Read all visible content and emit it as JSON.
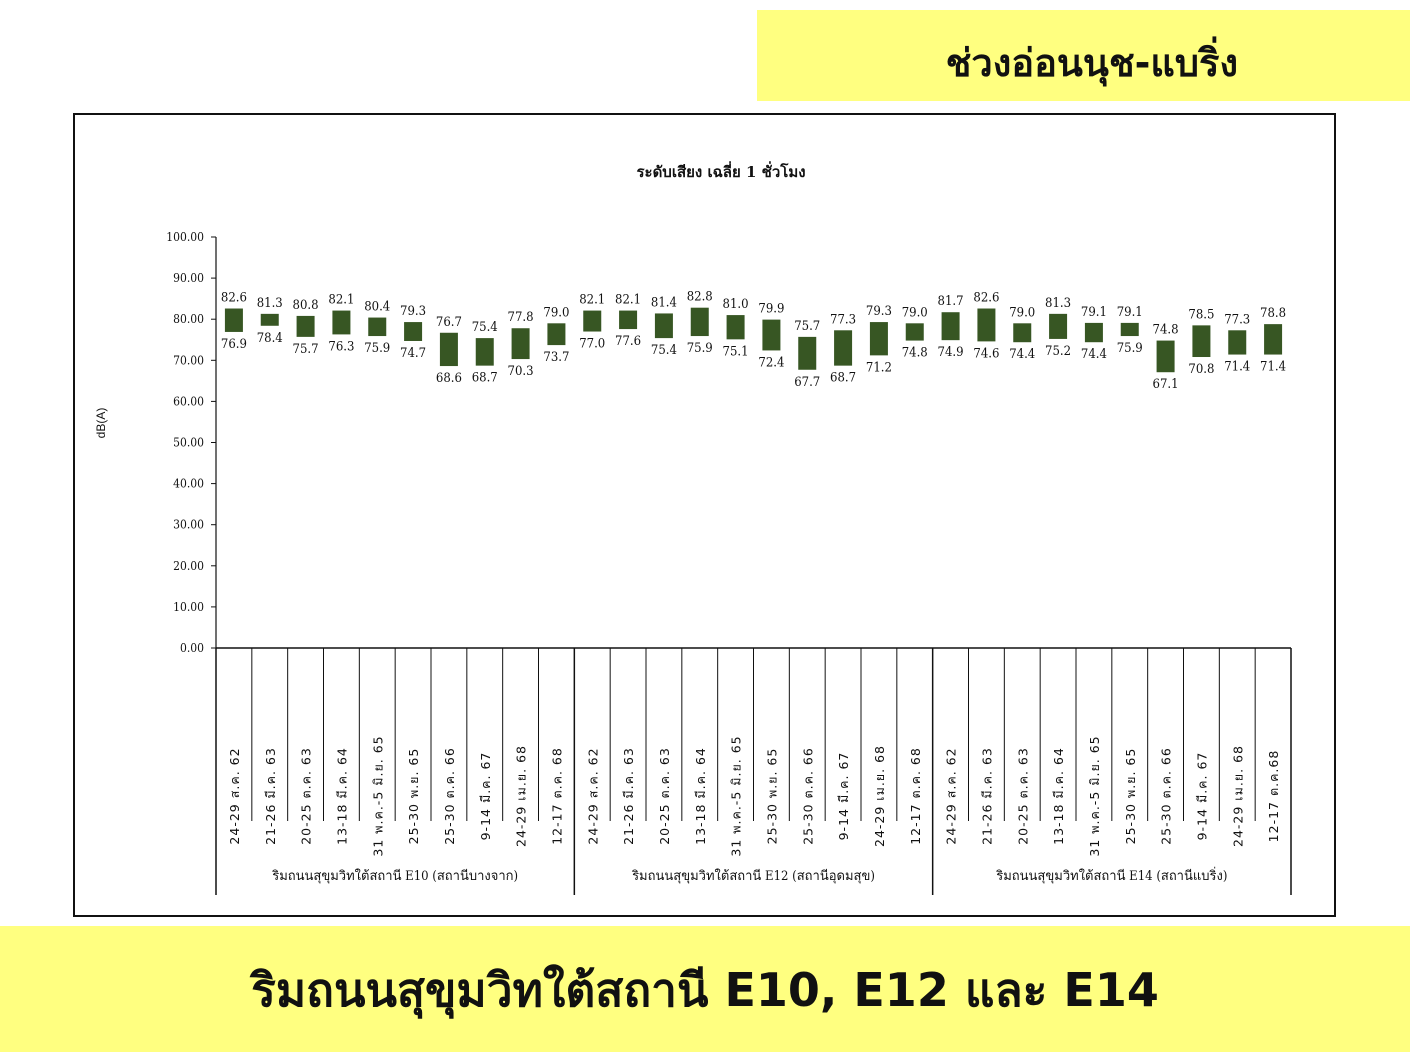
{
  "header": {
    "title": "ช่วงอ่อนนุช-แบริ่ง"
  },
  "footer": {
    "title": "ริมถนนสุขุมวิทใต้สถานี E10, E12 และ E14"
  },
  "colors": {
    "bar": "#375623",
    "banner": "#ffff80",
    "axis": "#111111"
  },
  "chart_data": {
    "type": "bar",
    "title": "ระดับเสียง เฉลี่ย 1 ชั่วโมง",
    "ylabel": "dB(A)",
    "ylim": [
      0,
      100
    ],
    "yticks": [
      "0.00",
      "10.00",
      "20.00",
      "30.00",
      "40.00",
      "50.00",
      "60.00",
      "70.00",
      "80.00",
      "90.00",
      "100.00"
    ],
    "groups": [
      {
        "name": "ริมถนนสุขุมวิทใต้สถานี E10 (สถานีบางจาก)",
        "categories": [
          "24-29 ส.ค. 62",
          "21-26 มี.ค. 63",
          "20-25 ต.ค. 63",
          "13-18 มี.ค. 64",
          "31 พ.ค.-5 มิ.ย. 65",
          "25-30 พ.ย. 65",
          "25-30 ต.ค. 66",
          "9-14 มี.ค. 67",
          "24-29 เม.ย. 68",
          "12-17 ต.ค. 68"
        ],
        "high": [
          82.6,
          81.3,
          80.8,
          82.1,
          80.4,
          79.3,
          76.7,
          75.4,
          77.8,
          79.0
        ],
        "low": [
          76.9,
          78.4,
          75.7,
          76.3,
          75.9,
          74.7,
          68.6,
          68.7,
          70.3,
          73.7
        ]
      },
      {
        "name": "ริมถนนสุขุมวิทใต้สถานี E12 (สถานีอุดมสุข)",
        "categories": [
          "24-29 ส.ค. 62",
          "21-26 มี.ค. 63",
          "20-25 ต.ค. 63",
          "13-18 มี.ค. 64",
          "31 พ.ค.-5 มิ.ย. 65",
          "25-30 พ.ย. 65",
          "25-30 ต.ค. 66",
          "9-14 มี.ค. 67",
          "24-29 เม.ย. 68",
          "12-17 ต.ค. 68"
        ],
        "high": [
          82.1,
          82.1,
          81.4,
          82.8,
          81.0,
          79.9,
          75.7,
          77.3,
          79.3,
          79.0
        ],
        "low": [
          77.0,
          77.6,
          75.4,
          75.9,
          75.1,
          72.4,
          67.7,
          68.7,
          71.2,
          74.8
        ]
      },
      {
        "name": "ริมถนนสุขุมวิทใต้สถานี E14 (สถานีแบริ่ง)",
        "categories": [
          "24-29 ส.ค. 62",
          "21-26 มี.ค. 63",
          "20-25 ต.ค. 63",
          "13-18 มี.ค. 64",
          "31 พ.ค.-5 มิ.ย. 65",
          "25-30 พ.ย. 65",
          "25-30 ต.ค. 66",
          "9-14 มี.ค. 67",
          "24-29 เม.ย. 68",
          "12-17 ต.ค.68"
        ],
        "high": [
          81.7,
          82.6,
          79.0,
          81.3,
          79.1,
          79.1,
          74.8,
          78.5,
          77.3,
          78.8
        ],
        "low": [
          74.9,
          74.6,
          74.4,
          75.2,
          74.4,
          75.9,
          67.1,
          70.8,
          71.4,
          71.4
        ]
      }
    ]
  }
}
